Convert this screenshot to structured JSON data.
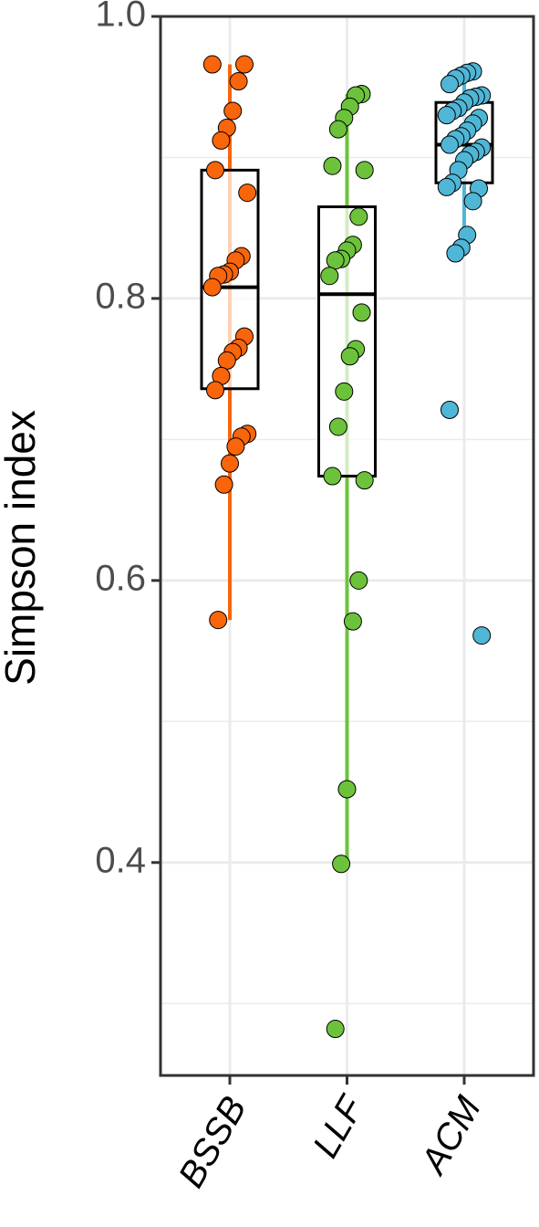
{
  "chart_data": {
    "type": "box",
    "y_label": "Simpson index",
    "ylim": [
      0.249,
      1.0
    ],
    "yticks": [
      0.4,
      0.6,
      0.8,
      {
        "value": 1,
        "label": "1.0"
      }
    ],
    "minor_yticks": [
      0.3,
      0.5,
      0.7,
      0.9
    ],
    "grid": true,
    "series": [
      {
        "name": "BSSB",
        "color": "#f8650a",
        "q1": 0.736,
        "median": 0.808,
        "q3": 0.891,
        "whisker_low": 0.572,
        "whisker_high": 0.966,
        "values": [
          0.966,
          0.966,
          0.954,
          0.933,
          0.921,
          0.912,
          0.891,
          0.875,
          0.83,
          0.827,
          0.819,
          0.817,
          0.816,
          0.808,
          0.773,
          0.765,
          0.762,
          0.756,
          0.745,
          0.735,
          0.704,
          0.702,
          0.695,
          0.683,
          0.668,
          0.572
        ]
      },
      {
        "name": "LLF",
        "color": "#6cc33b",
        "q1": 0.674,
        "median": 0.803,
        "q3": 0.865,
        "whisker_low": 0.399,
        "whisker_high": 0.945,
        "values": [
          0.945,
          0.944,
          0.936,
          0.928,
          0.92,
          0.894,
          0.891,
          0.858,
          0.838,
          0.834,
          0.828,
          0.827,
          0.816,
          0.79,
          0.764,
          0.759,
          0.734,
          0.709,
          0.674,
          0.671,
          0.6,
          0.571,
          0.452,
          0.399,
          0.282
        ]
      },
      {
        "name": "ACM",
        "color": "#4fb6d6",
        "q1": 0.882,
        "median": 0.909,
        "q3": 0.939,
        "whisker_low": 0.845,
        "whisker_high": 0.961,
        "values": [
          0.961,
          0.96,
          0.958,
          0.956,
          0.952,
          0.944,
          0.943,
          0.942,
          0.939,
          0.935,
          0.933,
          0.93,
          0.928,
          0.924,
          0.919,
          0.915,
          0.913,
          0.909,
          0.907,
          0.904,
          0.902,
          0.898,
          0.891,
          0.882,
          0.879,
          0.878,
          0.869,
          0.845,
          0.836,
          0.832,
          0.721,
          0.561
        ]
      }
    ]
  }
}
